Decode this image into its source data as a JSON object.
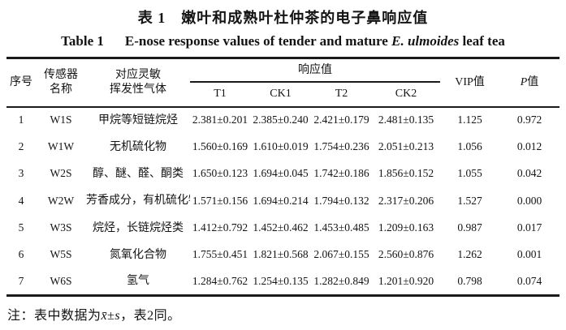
{
  "titles": {
    "zh": "表 1　嫩叶和成熟叶杜仲茶的电子鼻响应值",
    "en_label": "Table 1",
    "en_text_1": "E-nose response values of tender and mature ",
    "en_italic": "E. ulmoides",
    "en_text_2": " leaf tea"
  },
  "table": {
    "headers": {
      "no": "序号",
      "sensor_line1": "传感器",
      "sensor_line2": "名称",
      "gas_line1": "对应灵敏",
      "gas_line2": "挥发性气体",
      "response_group": "响应值",
      "sub": [
        "T1",
        "CK1",
        "T2",
        "CK2"
      ],
      "vip": "VIP值",
      "p_italic": "P",
      "p_suffix": "值"
    },
    "rows": [
      {
        "no": "1",
        "sensor": "W1S",
        "gas": "甲烷等短链烷烃",
        "t1": "2.381±0.201",
        "ck1": "2.385±0.240",
        "t2": "2.421±0.179",
        "ck2": "2.481±0.135",
        "vip": "1.125",
        "p": "0.972"
      },
      {
        "no": "2",
        "sensor": "W1W",
        "gas": "无机硫化物",
        "t1": "1.560±0.169",
        "ck1": "1.610±0.019",
        "t2": "1.754±0.236",
        "ck2": "2.051±0.213",
        "vip": "1.056",
        "p": "0.012"
      },
      {
        "no": "3",
        "sensor": "W2S",
        "gas": "醇、醚、醛、酮类",
        "t1": "1.650±0.123",
        "ck1": "1.694±0.045",
        "t2": "1.742±0.186",
        "ck2": "1.856±0.152",
        "vip": "1.055",
        "p": "0.042"
      },
      {
        "no": "4",
        "sensor": "W2W",
        "gas": "芳香成分，有机硫化物",
        "t1": "1.571±0.156",
        "ck1": "1.694±0.214",
        "t2": "1.794±0.132",
        "ck2": "2.317±0.206",
        "vip": "1.527",
        "p": "0.000"
      },
      {
        "no": "5",
        "sensor": "W3S",
        "gas": "烷烃，长链烷烃类",
        "t1": "1.412±0.792",
        "ck1": "1.452±0.462",
        "t2": "1.453±0.485",
        "ck2": "1.209±0.163",
        "vip": "0.987",
        "p": "0.017"
      },
      {
        "no": "6",
        "sensor": "W5S",
        "gas": "氮氧化合物",
        "t1": "1.755±0.451",
        "ck1": "1.821±0.568",
        "t2": "2.067±0.155",
        "ck2": "2.560±0.876",
        "vip": "1.262",
        "p": "0.001"
      },
      {
        "no": "7",
        "sensor": "W6S",
        "gas": "氢气",
        "t1": "1.284±0.762",
        "ck1": "1.254±0.135",
        "t2": "1.282±0.849",
        "ck2": "1.201±0.920",
        "vip": "0.798",
        "p": "0.074"
      }
    ]
  },
  "footnote": {
    "prefix": "注：表中数据为",
    "xbar": "x̄",
    "pm": "±",
    "s": "s",
    "suffix": "，表2同。"
  }
}
